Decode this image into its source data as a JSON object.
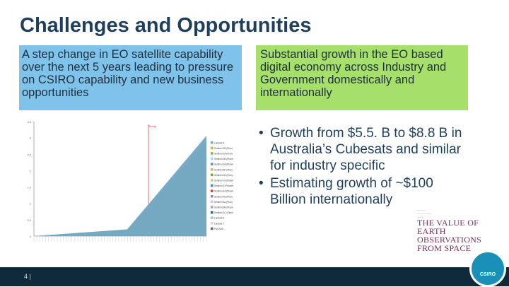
{
  "slide": {
    "title": "Challenges and Opportunities",
    "left_box": "A step change in EO satellite capability over the next 5 years leading to pressure on CSIRO capability and new business opportunities",
    "right_box": "Substantial growth in the EO based digital economy across Industry and Government domestically and internationally",
    "bullets": [
      "Growth from $5.5. B to $8.8 B in Australia’s Cubesats and similar for industry specific",
      "Estimating growth of ~$100 Billion internationally"
    ],
    "report_title": "THE VALUE OF EARTH OBSERVATIONS FROM SPACE",
    "page_number": "4 |",
    "logo_text": "CSIRO"
  },
  "chart_data": {
    "type": "area",
    "title": "",
    "annotation": "Today",
    "y_ticks": [
      "3.5",
      "3",
      "2.5",
      "2",
      "1.5",
      "1",
      "0.5",
      "0"
    ],
    "ylim": [
      0,
      3.5
    ],
    "legend": [
      "Landsat 9",
      "Sentinel-2B (Plan)",
      "Sentinel-2A (Plan)",
      "Sentinel-3B (Planned)",
      "Sentinel-3A (Planned)",
      "Sentinel-5P (Plan)",
      "Sentinel-1B (Plan)",
      "Sentinel-1A (Planned)",
      "Sentinel-5 (Planned)",
      "Sentinel-4A (Planned)",
      "Sentinel-4B (Plan)",
      "Sentinel-6A (Plan)",
      "Sentinel-6B (Planned)",
      "Sentinel-2C (Planned)",
      "Landsat 8",
      "Landsat 7",
      "Pre 2008"
    ],
    "colors": [
      "#6fa8c7",
      "#e4a84a",
      "#8ab04f",
      "#a2d7e8",
      "#5b8dc9",
      "#e0b25a",
      "#7ba23f",
      "#b6d38a",
      "#4a7fb3",
      "#c24a3a",
      "#9a7fb8",
      "#f2b7c5",
      "#a8a8a8",
      "#2c5f8a",
      "#9bc8d8",
      "#d3d3d3",
      "#666666"
    ]
  }
}
